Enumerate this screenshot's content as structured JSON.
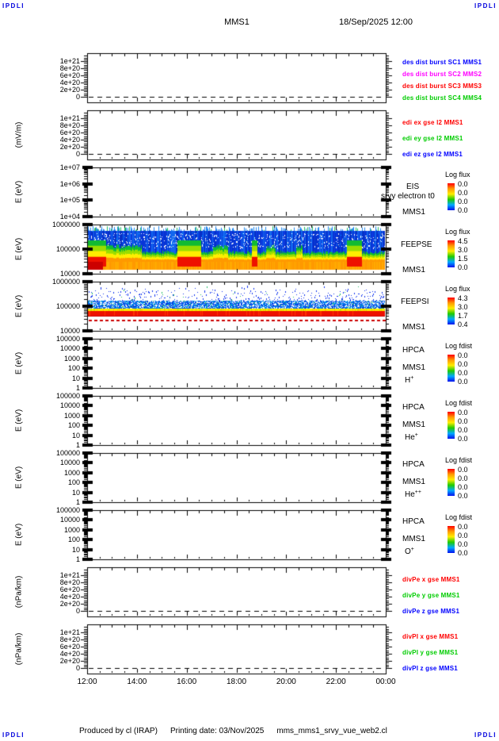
{
  "page": {
    "corner_label": "IPDLI",
    "title": "MMS1",
    "datetime": "18/Sep/2025 12:00",
    "footer": {
      "produced_by": "Produced by cl (IRAP)",
      "printing_date": "Printing date: 03/Nov/2025",
      "script_name": "mms_mms1_srvy_vue_web2.cl"
    }
  },
  "colors": {
    "axis": "#000000",
    "corner_text": "#0000dd",
    "legend_red": "#ff0000",
    "legend_green": "#00cc00",
    "legend_blue": "#0000ff",
    "legend_magenta": "#ff00ff",
    "colorbar_gradient": [
      "#ff0000",
      "#ff9900",
      "#ffee00",
      "#22cc00",
      "#00aaff",
      "#0011ee"
    ],
    "spectrogram": {
      "blue": "#0a3ae0",
      "blue2": "#1166ee",
      "blue3": "#0630c8",
      "cyan": "#00aaff",
      "green": "#11bb33",
      "chartreuse": "#99dd00",
      "yellow": "#ffee00",
      "orange": "#ff9900",
      "orange2": "#ffaa00",
      "red": "#ee1100",
      "dark_red": "#cc0000",
      "spike": "#2288ee",
      "fleck_green": "#22bb66"
    }
  },
  "time_axis": {
    "ticks": [
      "12:00",
      "14:00",
      "16:00",
      "18:00",
      "20:00",
      "22:00",
      "00:00"
    ],
    "minor_per_major": 4
  },
  "panels": [
    {
      "id": "des-dist-burst",
      "unit_label": "",
      "scale_type": "linear",
      "yticks": [
        "1e+21",
        "8e+20",
        "6e+20",
        "4e+20",
        "2e+20",
        "0"
      ],
      "dashed_zero": true,
      "legend": [
        {
          "label": "des dist burst SC1 MMS1",
          "color": "#0000ff"
        },
        {
          "label": "des dist burst SC2 MMS2",
          "color": "#ff00ff"
        },
        {
          "label": "des dist burst SC3 MMS3",
          "color": "#ff0000"
        },
        {
          "label": "des dist burst SC4 MMS4",
          "color": "#00cc00"
        }
      ]
    },
    {
      "id": "edi-e-gse",
      "unit_label": "(mV/m)",
      "scale_type": "linear",
      "yticks": [
        "1e+21",
        "8e+20",
        "6e+20",
        "4e+20",
        "2e+20",
        "0"
      ],
      "dashed_zero": true,
      "legend": [
        {
          "label": "edi ex gse l2 MMS1",
          "color": "#ff0000"
        },
        {
          "label": "edi ey gse l2 MMS1",
          "color": "#00cc00"
        },
        {
          "label": "edi ez gse l2 MMS1",
          "color": "#0000ff"
        }
      ]
    },
    {
      "id": "eis",
      "unit_label": "E (eV)",
      "scale_type": "log",
      "yticks": [
        "1e+07",
        "1e+06",
        "1e+05",
        "1e+04"
      ],
      "right_labels": [
        "EIS",
        "srvy electron t0",
        "MMS1"
      ],
      "colorbar": {
        "title": "Log flux",
        "ticks": [
          "0.0",
          "0.0",
          "0.0",
          "0.0"
        ]
      }
    },
    {
      "id": "feepse",
      "unit_label": "E (eV)",
      "scale_type": "log",
      "yticks": [
        "1000000",
        "100000",
        "10000"
      ],
      "right_labels": [
        "FEEPSE",
        "MMS1"
      ],
      "colorbar": {
        "title": "Log flux",
        "ticks": [
          "4.5",
          "3.0",
          "1.5",
          "0.0"
        ]
      }
    },
    {
      "id": "feepsi",
      "unit_label": "E (eV)",
      "scale_type": "log",
      "yticks": [
        "1000000",
        "100000",
        "10000"
      ],
      "right_labels": [
        "FEEPSI",
        "MMS1"
      ],
      "colorbar": {
        "title": "Log flux",
        "ticks": [
          "4.3",
          "3.0",
          "1.7",
          "0.4"
        ]
      }
    },
    {
      "id": "hpca-h",
      "unit_label": "E (eV)",
      "scale_type": "log",
      "yticks": [
        "100000",
        "10000",
        "1000",
        "100",
        "10",
        "1"
      ],
      "right_labels": [
        "HPCA",
        "MMS1"
      ],
      "ion": {
        "base": "H",
        "sup": "+"
      },
      "colorbar": {
        "title": "Log fdist",
        "ticks": [
          "0.0",
          "0.0",
          "0.0",
          "0.0"
        ]
      }
    },
    {
      "id": "hpca-he",
      "unit_label": "E (eV)",
      "scale_type": "log",
      "yticks": [
        "100000",
        "10000",
        "1000",
        "100",
        "10",
        "1"
      ],
      "right_labels": [
        "HPCA",
        "MMS1"
      ],
      "ion": {
        "base": "He",
        "sup": "+"
      },
      "colorbar": {
        "title": "Log fdist",
        "ticks": [
          "0.0",
          "0.0",
          "0.0",
          "0.0"
        ]
      }
    },
    {
      "id": "hpca-hepp",
      "unit_label": "E (eV)",
      "scale_type": "log",
      "yticks": [
        "100000",
        "10000",
        "1000",
        "100",
        "10",
        "1"
      ],
      "right_labels": [
        "HPCA",
        "MMS1"
      ],
      "ion": {
        "base": "He",
        "sup": "++"
      },
      "colorbar": {
        "title": "Log fdist",
        "ticks": [
          "0.0",
          "0.0",
          "0.0",
          "0.0"
        ]
      }
    },
    {
      "id": "hpca-o",
      "unit_label": "E (eV)",
      "scale_type": "log",
      "yticks": [
        "100000",
        "10000",
        "1000",
        "100",
        "10",
        "1"
      ],
      "right_labels": [
        "HPCA",
        "MMS1"
      ],
      "ion": {
        "base": "O",
        "sup": "+"
      },
      "colorbar": {
        "title": "Log fdist",
        "ticks": [
          "0.0",
          "0.0",
          "0.0",
          "0.0"
        ]
      }
    },
    {
      "id": "divpe",
      "unit_label": "(nPa/km)",
      "scale_type": "linear",
      "yticks": [
        "1e+21",
        "8e+20",
        "6e+20",
        "4e+20",
        "2e+20",
        "0"
      ],
      "dashed_zero": true,
      "legend": [
        {
          "label": "divPe x gse MMS1",
          "color": "#ff0000"
        },
        {
          "label": "divPe y gse MMS1",
          "color": "#00cc00"
        },
        {
          "label": "divPe z gse MMS1",
          "color": "#0000ff"
        }
      ]
    },
    {
      "id": "divpi",
      "unit_label": "(nPa/km)",
      "scale_type": "linear",
      "yticks": [
        "1e+21",
        "8e+20",
        "6e+20",
        "4e+20",
        "2e+20",
        "0"
      ],
      "dashed_zero": true,
      "legend": [
        {
          "label": "divPI x gse MMS1",
          "color": "#ff0000"
        },
        {
          "label": "divPI y gse MMS1",
          "color": "#00cc00"
        },
        {
          "label": "divPI z gse MMS1",
          "color": "#0000ff"
        }
      ]
    }
  ],
  "chart_data": [
    {
      "id": "des-dist-burst",
      "type": "line",
      "x_range": [
        "12:00",
        "00:00"
      ],
      "y_range": [
        0,
        1e+21
      ],
      "baseline_dashed_at": 0,
      "series": [
        {
          "name": "des dist burst SC1 MMS1",
          "color": "#0000ff",
          "values": []
        },
        {
          "name": "des dist burst SC2 MMS2",
          "color": "#ff00ff",
          "values": []
        },
        {
          "name": "des dist burst SC3 MMS3",
          "color": "#ff0000",
          "values": []
        },
        {
          "name": "des dist burst SC4 MMS4",
          "color": "#00cc00",
          "values": []
        }
      ]
    },
    {
      "id": "edi-e-gse",
      "type": "line",
      "ylabel": "(mV/m)",
      "x_range": [
        "12:00",
        "00:00"
      ],
      "y_range": [
        0,
        1e+21
      ],
      "baseline_dashed_at": 0,
      "series": [
        {
          "name": "edi ex gse l2 MMS1",
          "color": "#ff0000",
          "values": []
        },
        {
          "name": "edi ey gse l2 MMS1",
          "color": "#00cc00",
          "values": []
        },
        {
          "name": "edi ez gse l2 MMS1",
          "color": "#0000ff",
          "values": []
        }
      ]
    },
    {
      "id": "eis",
      "type": "spectrogram",
      "ylabel": "E (eV)",
      "y_range_ev": [
        10000.0,
        10000000.0
      ],
      "colorbar": {
        "title": "Log flux",
        "tick_values": [
          0.0,
          0.0,
          0.0,
          0.0
        ]
      },
      "content": "blank"
    },
    {
      "id": "feepse",
      "type": "spectrogram",
      "ylabel": "E (eV)",
      "y_range_ev": [
        10000.0,
        1000000.0
      ],
      "colorbar": {
        "title": "Log flux",
        "tick_values": [
          4.5,
          3.0,
          1.5,
          0.0
        ]
      },
      "features": {
        "spike_row_ev": [
          560000,
          900000
        ],
        "blue_field_ev": [
          55000,
          560000
        ],
        "green_band_ev": [
          30000,
          75000
        ],
        "orange_band_ev": [
          15000,
          30000
        ],
        "enhancement_times_frac": [
          [
            0.0,
            0.06
          ],
          [
            0.3,
            0.38
          ],
          [
            0.55,
            0.57
          ],
          [
            0.87,
            0.92
          ]
        ],
        "moderate_times_frac": [
          [
            0.06,
            0.18
          ],
          [
            0.42,
            0.47
          ],
          [
            0.6,
            0.63
          ],
          [
            0.7,
            0.72
          ]
        ]
      }
    },
    {
      "id": "feepsi",
      "type": "spectrogram",
      "ylabel": "E (eV)",
      "y_range_ev": [
        10000.0,
        1000000.0
      ],
      "colorbar": {
        "title": "Log flux",
        "tick_values": [
          4.3,
          3.0,
          1.7,
          0.4
        ]
      },
      "features": {
        "speckle_ev": [
          170000,
          700000
        ],
        "dense_band_ev": [
          80000,
          170000
        ],
        "yellow_line_ev": [
          62000,
          80000
        ],
        "red_band_ev": [
          38000,
          62000
        ],
        "dashed_line_ev": 28000
      }
    },
    {
      "id": "hpca-h",
      "type": "spectrogram",
      "ylabel": "E (eV)",
      "y_range_ev": [
        1,
        100000.0
      ],
      "colorbar": {
        "title": "Log fdist",
        "tick_values": [
          0.0,
          0.0,
          0.0,
          0.0
        ]
      },
      "content": "blank"
    },
    {
      "id": "hpca-he",
      "type": "spectrogram",
      "ylabel": "E (eV)",
      "y_range_ev": [
        1,
        100000.0
      ],
      "colorbar": {
        "title": "Log fdist",
        "tick_values": [
          0.0,
          0.0,
          0.0,
          0.0
        ]
      },
      "content": "blank"
    },
    {
      "id": "hpca-hepp",
      "type": "spectrogram",
      "ylabel": "E (eV)",
      "y_range_ev": [
        1,
        100000.0
      ],
      "colorbar": {
        "title": "Log fdist",
        "tick_values": [
          0.0,
          0.0,
          0.0,
          0.0
        ]
      },
      "content": "blank"
    },
    {
      "id": "hpca-o",
      "type": "spectrogram",
      "ylabel": "E (eV)",
      "y_range_ev": [
        1,
        100000.0
      ],
      "colorbar": {
        "title": "Log fdist",
        "tick_values": [
          0.0,
          0.0,
          0.0,
          0.0
        ]
      },
      "content": "blank"
    },
    {
      "id": "divpe",
      "type": "line",
      "ylabel": "(nPa/km)",
      "x_range": [
        "12:00",
        "00:00"
      ],
      "y_range": [
        0,
        1e+21
      ],
      "baseline_dashed_at": 0,
      "series": [
        {
          "name": "divPe x gse MMS1",
          "color": "#ff0000",
          "values": []
        },
        {
          "name": "divPe y gse MMS1",
          "color": "#00cc00",
          "values": []
        },
        {
          "name": "divPe z gse MMS1",
          "color": "#0000ff",
          "values": []
        }
      ]
    },
    {
      "id": "divpi",
      "type": "line",
      "ylabel": "(nPa/km)",
      "x_range": [
        "12:00",
        "00:00"
      ],
      "y_range": [
        0,
        1e+21
      ],
      "baseline_dashed_at": 0,
      "series": [
        {
          "name": "divPI x gse MMS1",
          "color": "#ff0000",
          "values": []
        },
        {
          "name": "divPI y gse MMS1",
          "color": "#00cc00",
          "values": []
        },
        {
          "name": "divPI z gse MMS1",
          "color": "#0000ff",
          "values": []
        }
      ]
    }
  ]
}
